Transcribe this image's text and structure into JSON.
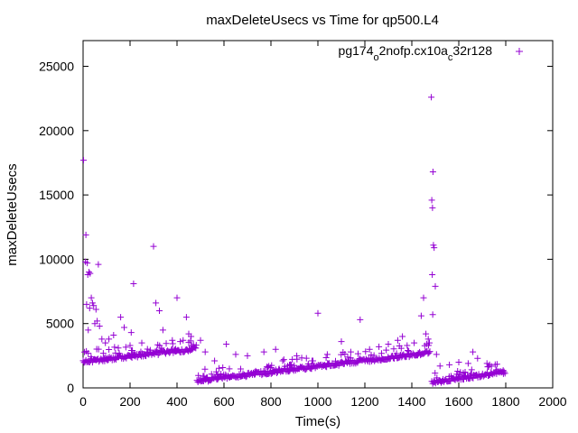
{
  "chart_data": {
    "type": "scatter",
    "title": "maxDeleteUsecs vs Time for qp500.L4",
    "xlabel": "Time(s)",
    "ylabel": "maxDeleteUsecs",
    "xlim": [
      0,
      2000
    ],
    "ylim": [
      0,
      27000
    ],
    "xticks": [
      0,
      200,
      400,
      600,
      800,
      1000,
      1200,
      1400,
      1600,
      1800,
      2000
    ],
    "yticks": [
      0,
      5000,
      10000,
      15000,
      20000,
      25000
    ],
    "xtick_labels": [
      "0",
      "200",
      "400",
      "600",
      "800",
      "1000",
      "1200",
      "1400",
      "1600",
      "1800",
      "2000"
    ],
    "ytick_labels": [
      "0",
      "5000",
      "10000",
      "15000",
      "20000",
      "25000"
    ],
    "grid": false,
    "legend_position": "top-right",
    "marker": "+",
    "color": "#9400d3",
    "series": [
      {
        "name_parts": [
          "pg174",
          "o",
          "2nofp.cx10a",
          "c",
          "32r128"
        ],
        "segments": [
          {
            "x_start": 0,
            "x_end": 480,
            "y_start": 2000,
            "y_end": 3000
          },
          {
            "x_start": 485,
            "x_end": 1480,
            "y_start": 500,
            "y_end": 2700
          },
          {
            "x_start": 1485,
            "x_end": 1800,
            "y_start": 400,
            "y_end": 1200
          }
        ],
        "outliers": [
          [
            2,
            17700
          ],
          [
            12,
            11900
          ],
          [
            10,
            9800
          ],
          [
            18,
            9700
          ],
          [
            65,
            9600
          ],
          [
            25,
            9000
          ],
          [
            30,
            8900
          ],
          [
            20,
            8800
          ],
          [
            35,
            7000
          ],
          [
            40,
            6600
          ],
          [
            15,
            6500
          ],
          [
            45,
            6400
          ],
          [
            28,
            6200
          ],
          [
            55,
            6100
          ],
          [
            60,
            5200
          ],
          [
            50,
            5000
          ],
          [
            70,
            4800
          ],
          [
            22,
            4500
          ],
          [
            80,
            3800
          ],
          [
            95,
            3500
          ],
          [
            110,
            3800
          ],
          [
            130,
            4100
          ],
          [
            160,
            5500
          ],
          [
            175,
            4700
          ],
          [
            205,
            4300
          ],
          [
            215,
            8100
          ],
          [
            250,
            3500
          ],
          [
            300,
            11000
          ],
          [
            310,
            6600
          ],
          [
            325,
            6000
          ],
          [
            340,
            4500
          ],
          [
            380,
            3700
          ],
          [
            400,
            7000
          ],
          [
            440,
            5500
          ],
          [
            450,
            4200
          ],
          [
            460,
            4000
          ],
          [
            470,
            3200
          ],
          [
            200,
            3300
          ],
          [
            150,
            3100
          ],
          [
            500,
            3700
          ],
          [
            520,
            2800
          ],
          [
            560,
            2100
          ],
          [
            610,
            3400
          ],
          [
            650,
            2600
          ],
          [
            700,
            2500
          ],
          [
            770,
            2800
          ],
          [
            820,
            3000
          ],
          [
            850,
            2100
          ],
          [
            910,
            2500
          ],
          [
            1000,
            5800
          ],
          [
            1040,
            2600
          ],
          [
            1100,
            3600
          ],
          [
            1140,
            2800
          ],
          [
            1180,
            5300
          ],
          [
            1220,
            3000
          ],
          [
            1260,
            3200
          ],
          [
            1300,
            3400
          ],
          [
            1340,
            3700
          ],
          [
            1360,
            4000
          ],
          [
            1380,
            3300
          ],
          [
            1410,
            3500
          ],
          [
            1440,
            5600
          ],
          [
            1450,
            7000
          ],
          [
            1460,
            4200
          ],
          [
            1470,
            3800
          ],
          [
            1483,
            22600
          ],
          [
            1485,
            14600
          ],
          [
            1488,
            14000
          ],
          [
            1490,
            16800
          ],
          [
            1492,
            11100
          ],
          [
            1495,
            10900
          ],
          [
            1487,
            8800
          ],
          [
            1500,
            7900
          ],
          [
            1489,
            5700
          ],
          [
            1505,
            2600
          ],
          [
            1520,
            1700
          ],
          [
            1560,
            1800
          ],
          [
            1600,
            2000
          ],
          [
            1640,
            1900
          ],
          [
            1660,
            2800
          ],
          [
            1680,
            2300
          ],
          [
            1720,
            1900
          ],
          [
            1760,
            1400
          ],
          [
            1790,
            1100
          ]
        ]
      }
    ]
  }
}
